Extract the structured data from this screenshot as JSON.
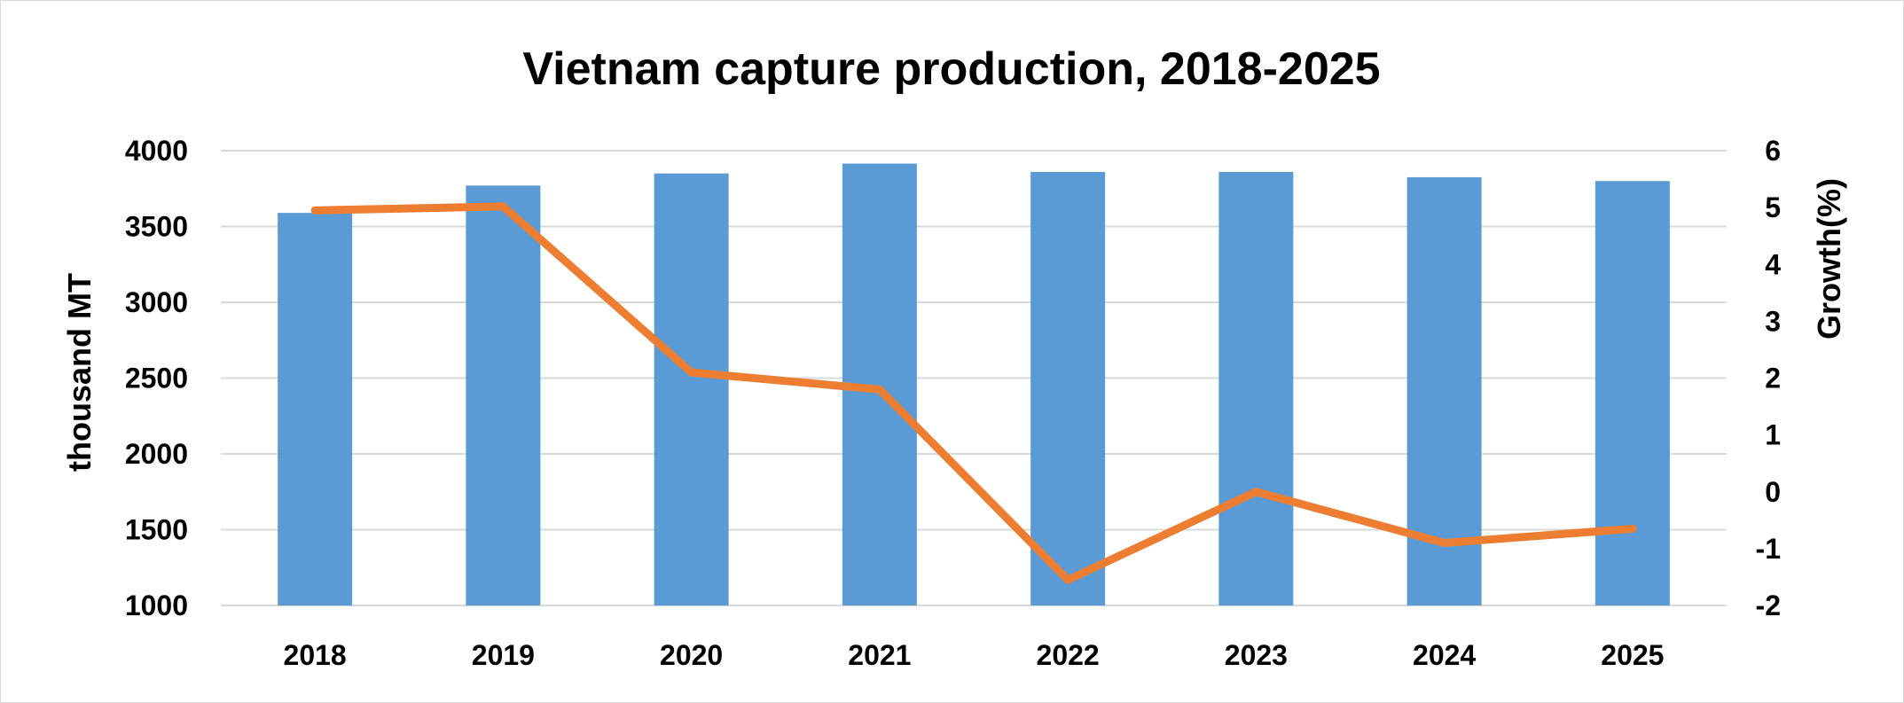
{
  "chart_data": {
    "type": "bar",
    "title": "Vietnam capture production, 2018-2025",
    "categories": [
      "2018",
      "2019",
      "2020",
      "2021",
      "2022",
      "2023",
      "2024",
      "2025"
    ],
    "ylabel": "thousand MT",
    "y2label": "Growth(%)",
    "ylim": [
      1000,
      4000
    ],
    "y_ticks": [
      "1000",
      "1500",
      "2000",
      "2500",
      "3000",
      "3500",
      "4000"
    ],
    "y2lim": [
      -2,
      6
    ],
    "y2_ticks": [
      "-2",
      "-1",
      "0",
      "1",
      "2",
      "3",
      "4",
      "5",
      "6"
    ],
    "grid": true,
    "series": [
      {
        "type": "bar",
        "axis": "left",
        "color": "#5b9bd5",
        "values": [
          3590,
          3770,
          3850,
          3915,
          3860,
          3860,
          3825,
          3800
        ]
      },
      {
        "type": "line",
        "axis": "right",
        "color": "#ed7d31",
        "values": [
          4.95,
          5.02,
          2.1,
          1.8,
          -1.55,
          0,
          -0.9,
          -0.65
        ]
      }
    ]
  }
}
